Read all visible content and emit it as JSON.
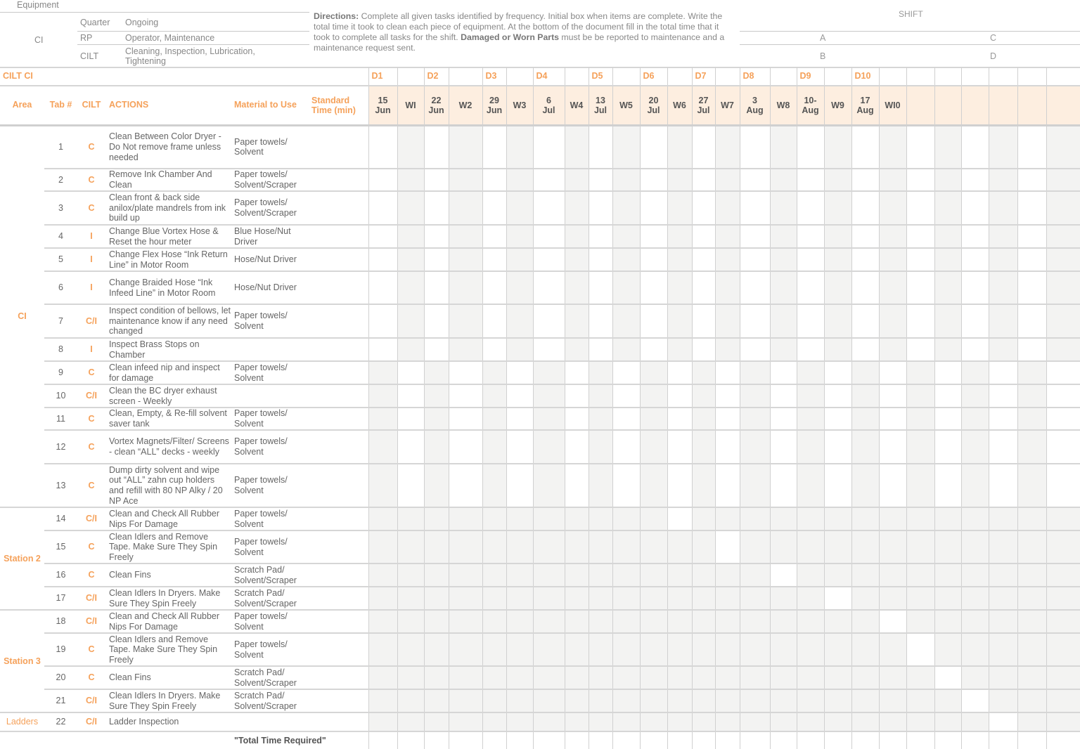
{
  "header": {
    "equipment_label": "Equipment",
    "equipment_value": "CI",
    "info": [
      {
        "label": "Quarter",
        "value": "Ongoing"
      },
      {
        "label": "RP",
        "value": "Operator, Maintenance"
      },
      {
        "label": "CILT",
        "value": "Cleaning, Inspection, Lubrication, Tightening"
      }
    ],
    "directions_label": "Directions:",
    "directions_text1": " Complete all given tasks identified by frequency. Initial box when items are complete. Write the total time it took to clean each piece of equipment. At the bottom of the document fill in the total time that it took to complete all tasks for the shift.  ",
    "directions_bold": "Damaged or Worn Parts",
    "directions_text2": " must be be reported to maintenance and a maintenance request sent.",
    "shift_label": "SHIFT",
    "shifts": [
      "A",
      "C",
      "B",
      "D"
    ]
  },
  "sheet": {
    "title": "CILT CI",
    "columns": {
      "area": "Area",
      "tab": "Tab #",
      "cilt": "CILT",
      "actions": "ACTIONS",
      "material": "Material to Use",
      "std_time": "Standard Time (min)"
    },
    "day_labels": [
      "D1",
      "",
      "D2",
      "",
      "D3",
      "",
      "D4",
      "",
      "D5",
      "",
      "D6",
      "",
      "D7",
      "",
      "D8",
      "",
      "D9",
      "",
      "D10",
      "",
      "",
      "",
      "",
      "",
      "",
      ""
    ],
    "date_headers": [
      "15 Jun",
      "WI",
      "22 Jun",
      "W2",
      "29 Jun",
      "W3",
      "6 Jul",
      "W4",
      "13 Jul",
      "W5",
      "20 Jul",
      "W6",
      "27 Jul",
      "W7",
      "3 Aug",
      "W8",
      "10- Aug",
      "W9",
      "17 Aug",
      "WI0",
      "",
      "",
      "",
      "",
      "",
      ""
    ],
    "areas": [
      {
        "name": "CI",
        "rows": 13
      },
      {
        "name": "Station 2",
        "rows": 4
      },
      {
        "name": "Station 3",
        "rows": 4
      },
      {
        "name": "Ladders",
        "rows": 1
      }
    ],
    "tasks": [
      {
        "tab": "1",
        "cilt": "C",
        "action": "Clean Between Color Dryer - Do Not remove frame unless needed",
        "material": "Paper towels/ Solvent"
      },
      {
        "tab": "2",
        "cilt": "C",
        "action": "Remove Ink Chamber And Clean",
        "material": "Paper towels/ Solvent/Scraper"
      },
      {
        "tab": "3",
        "cilt": "C",
        "action": "Clean front & back side anilox/plate mandrels from ink build up",
        "material": "Paper towels/ Solvent/Scraper"
      },
      {
        "tab": "4",
        "cilt": "I",
        "action": "Change Blue Vortex Hose & Reset the  hour meter",
        "material": "Blue Hose/Nut Driver"
      },
      {
        "tab": "5",
        "cilt": "I",
        "action": "Change Flex Hose “Ink Return Line” in Motor Room",
        "material": "Hose/Nut Driver"
      },
      {
        "tab": "6",
        "cilt": "I",
        "action": "Change Braided Hose “Ink Infeed Line” in Motor Room",
        "material": "Hose/Nut Driver"
      },
      {
        "tab": "7",
        "cilt": "C/I",
        "action": "Inspect condition of bellows, let maintenance know if any need changed",
        "material": "Paper towels/ Solvent"
      },
      {
        "tab": "8",
        "cilt": "I",
        "action": "Inspect Brass Stops on Chamber",
        "material": ""
      },
      {
        "tab": "9",
        "cilt": "C",
        "action": "Clean infeed nip and inspect for damage",
        "material": "Paper towels/ Solvent"
      },
      {
        "tab": "10",
        "cilt": "C/I",
        "action": "Clean the BC dryer exhaust screen - Weekly",
        "material": ""
      },
      {
        "tab": "11",
        "cilt": "C",
        "action": "Clean, Empty, & Re-fill solvent saver tank",
        "material": "Paper towels/ Solvent"
      },
      {
        "tab": "12",
        "cilt": "C",
        "action": "Vortex Magnets/Filter/ Screens - clean “ALL” decks - weekly",
        "material": "Paper towels/ Solvent"
      },
      {
        "tab": "13",
        "cilt": "C",
        "action": "Dump dirty solvent and wipe out “ALL” zahn cup holders and refill with 80 NP Alky / 20 NP Ace",
        "material": "Paper towels/ Solvent"
      },
      {
        "tab": "14",
        "cilt": "C/I",
        "action": "Clean and Check All Rubber Nips For Damage",
        "material": "Paper towels/ Solvent"
      },
      {
        "tab": "15",
        "cilt": "C",
        "action": "Clean Idlers and Remove Tape.  Make Sure They Spin Freely",
        "material": "Paper towels/ Solvent"
      },
      {
        "tab": "16",
        "cilt": "C",
        "action": "Clean Fins",
        "material": "Scratch Pad/ Solvent/Scraper"
      },
      {
        "tab": "17",
        "cilt": "C/I",
        "action": "Clean Idlers In Dryers.  Make Sure They Spin Freely",
        "material": "Scratch Pad/ Solvent/Scraper"
      },
      {
        "tab": "18",
        "cilt": "C/I",
        "action": "Clean and Check All Rubber Nips For Damage",
        "material": "Paper towels/ Solvent"
      },
      {
        "tab": "19",
        "cilt": "C",
        "action": "Clean Idlers and Remove Tape.  Make Sure They Spin Freely",
        "material": "Paper towels/ Solvent"
      },
      {
        "tab": "20",
        "cilt": "C",
        "action": "Clean Fins",
        "material": "Scratch Pad/ Solvent/Scraper"
      },
      {
        "tab": "21",
        "cilt": "C/I",
        "action": "Clean Idlers In Dryers.  Make Sure They Spin Freely",
        "material": "Scratch Pad/ Solvent/Scraper"
      },
      {
        "tab": "22",
        "cilt": "C/I",
        "action": "Ladder Inspection",
        "material": ""
      }
    ],
    "total_label": "\"Total Time Required\""
  },
  "colors": {
    "accent": "#f5a15a",
    "header_fill": "#fdeee0",
    "shade": "#f3f3f2"
  }
}
